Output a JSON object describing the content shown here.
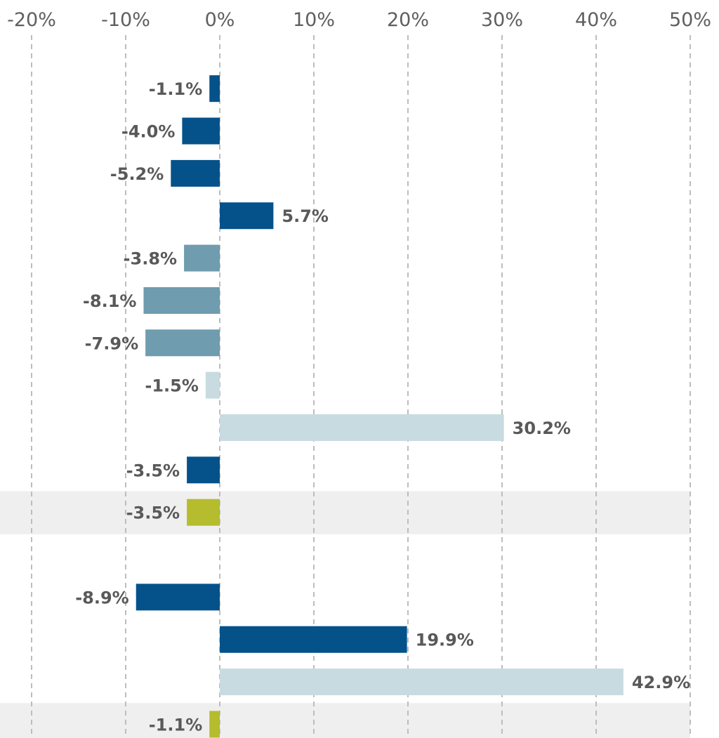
{
  "chart_data": {
    "type": "bar",
    "orientation": "horizontal",
    "title": "",
    "xlabel": "",
    "ylabel": "",
    "xlim": [
      -20,
      50
    ],
    "ticks": [
      -20,
      -10,
      0,
      10,
      20,
      30,
      40,
      50
    ],
    "tick_labels": [
      "-20%",
      "-10%",
      "0%",
      "10%",
      "20%",
      "30%",
      "40%",
      "50%"
    ],
    "grid": true,
    "colors": {
      "dark_blue": "#05528a",
      "mid_blue": "#6f9cae",
      "light_blue": "#c8dbe1",
      "olive": "#b5bc2e",
      "highlight": "#efefef"
    },
    "bars": [
      {
        "value": -1.1,
        "label": "-1.1%",
        "color": "dark_blue",
        "highlight": false
      },
      {
        "value": -4.0,
        "label": "-4.0%",
        "color": "dark_blue",
        "highlight": false
      },
      {
        "value": -5.2,
        "label": "-5.2%",
        "color": "dark_blue",
        "highlight": false
      },
      {
        "value": 5.7,
        "label": "5.7%",
        "color": "dark_blue",
        "highlight": false
      },
      {
        "value": -3.8,
        "label": "-3.8%",
        "color": "mid_blue",
        "highlight": false
      },
      {
        "value": -8.1,
        "label": "-8.1%",
        "color": "mid_blue",
        "highlight": false
      },
      {
        "value": -7.9,
        "label": "-7.9%",
        "color": "mid_blue",
        "highlight": false
      },
      {
        "value": -1.5,
        "label": "-1.5%",
        "color": "light_blue",
        "highlight": false
      },
      {
        "value": 30.2,
        "label": "30.2%",
        "color": "light_blue",
        "highlight": false
      },
      {
        "value": -3.5,
        "label": "-3.5%",
        "color": "dark_blue",
        "highlight": false
      },
      {
        "value": -3.5,
        "label": "-3.5%",
        "color": "olive",
        "highlight": true
      },
      {
        "value": null,
        "label": "",
        "color": "",
        "highlight": false
      },
      {
        "value": -8.9,
        "label": "-8.9%",
        "color": "dark_blue",
        "highlight": false
      },
      {
        "value": 19.9,
        "label": "19.9%",
        "color": "dark_blue",
        "highlight": false
      },
      {
        "value": 42.9,
        "label": "42.9%",
        "color": "light_blue",
        "highlight": false
      },
      {
        "value": -1.1,
        "label": "-1.1%",
        "color": "olive",
        "highlight": true
      }
    ]
  }
}
